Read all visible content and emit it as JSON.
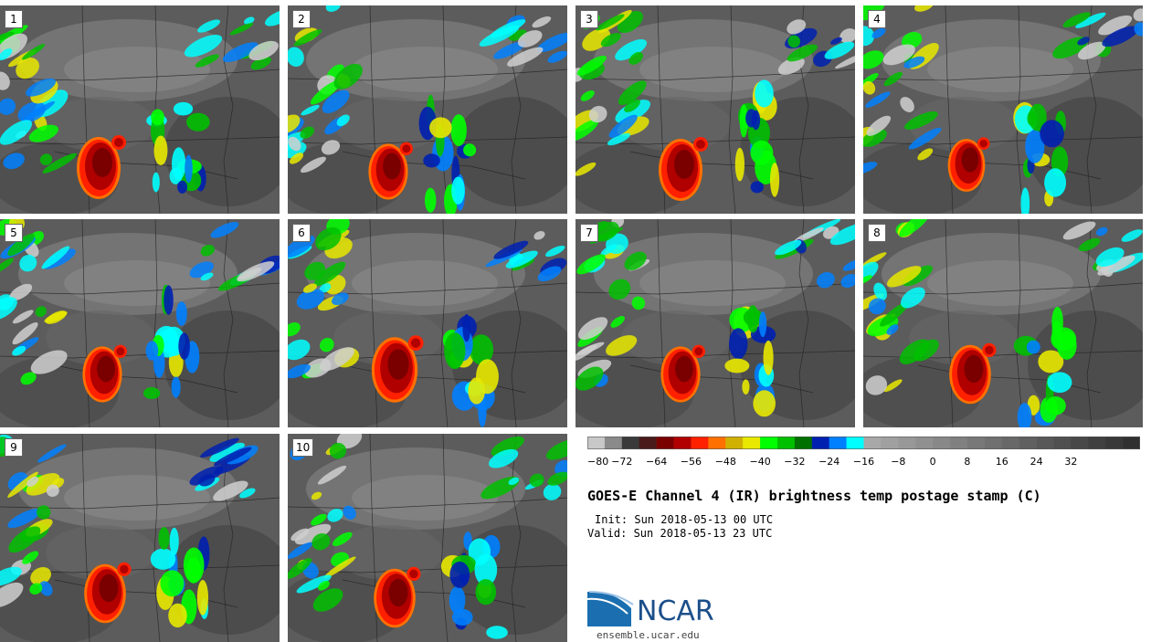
{
  "panels": [
    {
      "label": "1"
    },
    {
      "label": "2"
    },
    {
      "label": "3"
    },
    {
      "label": "4"
    },
    {
      "label": "5"
    },
    {
      "label": "6"
    },
    {
      "label": "7"
    },
    {
      "label": "8"
    },
    {
      "label": "9"
    },
    {
      "label": "10"
    }
  ],
  "colorbar": {
    "colors": [
      "#c8c8c8",
      "#8a8a8a",
      "#3a3a3a",
      "#4a1a1a",
      "#7a0000",
      "#b00000",
      "#ff2000",
      "#ff7000",
      "#d0b000",
      "#e8e800",
      "#00ff00",
      "#00c000",
      "#007000",
      "#0020b0",
      "#0080ff",
      "#00ffff",
      "#a8a8a8",
      "#a0a0a0",
      "#989898",
      "#909090",
      "#888888",
      "#808080",
      "#787878",
      "#707070",
      "#686868",
      "#606060",
      "#585858",
      "#505050",
      "#484848",
      "#404040",
      "#383838",
      "#303030"
    ],
    "tick_labels": [
      "−80",
      "−72",
      "−64",
      "−56",
      "−48",
      "−40",
      "−32",
      "−24",
      "−16",
      "−8",
      "0",
      "8",
      "16",
      "24",
      "32"
    ]
  },
  "title": "GOES-E Channel 4 (IR) brightness temp postage stamp (C)",
  "init": "Init: Sun 2018-05-13 00 UTC",
  "valid": "Valid: Sun 2018-05-13 23 UTC",
  "logo": {
    "text": "NCAR",
    "brand_color": "#1b4f8a"
  },
  "site": "ensemble.ucar.edu"
}
